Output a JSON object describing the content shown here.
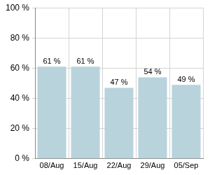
{
  "chart_data": {
    "type": "bar",
    "categories": [
      "08/Aug",
      "15/Aug",
      "22/Aug",
      "29/Aug",
      "05/Sep"
    ],
    "values": [
      61,
      61,
      47,
      54,
      49
    ],
    "value_labels": [
      "61 %",
      "61 %",
      "47 %",
      "54 %",
      "49 %"
    ],
    "color": "#b9d3dc",
    "ylim": [
      0,
      100
    ],
    "yticks": [
      {
        "value": 0,
        "label": "0 %"
      },
      {
        "value": 20,
        "label": "20 %"
      },
      {
        "value": 40,
        "label": "40 %"
      },
      {
        "value": 60,
        "label": "60 %"
      },
      {
        "value": 80,
        "label": "80 %"
      },
      {
        "value": 100,
        "label": "100 %"
      }
    ],
    "grid": true,
    "data_labels": true
  }
}
